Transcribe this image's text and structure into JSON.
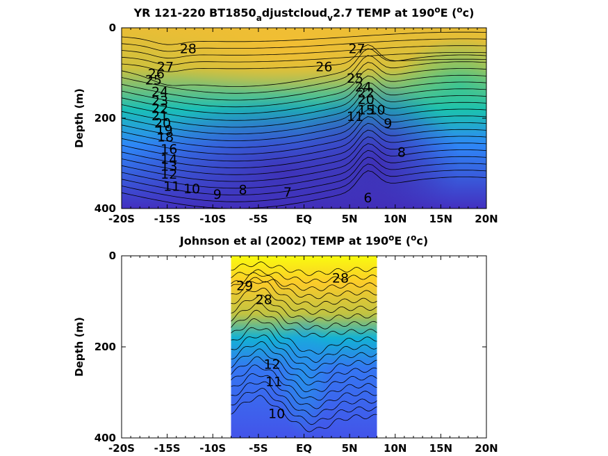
{
  "chart_data": [
    {
      "type": "heatmap",
      "subtype": "filled-contour",
      "title_parts": {
        "pre": "YR 121-220 BT1850",
        "sub1": "a",
        "mid": "djustcloud",
        "sub2": "v",
        "post": "2.7 TEMP at 190",
        "sup": "o",
        "post2": "E (",
        "sup2": "o",
        "post3": "c)"
      },
      "ylabel": "Depth (m)",
      "xlabel": "",
      "x_ticks": [
        "-20S",
        "-15S",
        "-10S",
        "-5S",
        "EQ",
        "5N",
        "10N",
        "15N",
        "20N"
      ],
      "x_tick_values": [
        -20,
        -15,
        -10,
        -5,
        0,
        5,
        10,
        15,
        20
      ],
      "y_ticks": [
        "0",
        "200",
        "400"
      ],
      "y_tick_values": [
        0,
        200,
        400
      ],
      "xlim": [
        -20,
        20
      ],
      "ylim": [
        400,
        0
      ],
      "data_extent": [
        -20,
        20
      ],
      "colormap": [
        "#3e26a8",
        "#4b40e3",
        "#2e87f7",
        "#12b1d6",
        "#1fc8a0",
        "#8bcc54",
        "#e4bd36",
        "#fbbf31",
        "#f9fb0e"
      ],
      "contour_labels": [
        {
          "text": "28",
          "x": -12.7,
          "y": 48
        },
        {
          "text": "27",
          "x": -15.2,
          "y": 88
        },
        {
          "text": "26",
          "x": -16.2,
          "y": 103
        },
        {
          "text": "25",
          "x": -16.5,
          "y": 117
        },
        {
          "text": "24",
          "x": -15.8,
          "y": 143
        },
        {
          "text": "23",
          "x": -15.8,
          "y": 163
        },
        {
          "text": "22",
          "x": -15.8,
          "y": 180
        },
        {
          "text": "21",
          "x": -15.8,
          "y": 196
        },
        {
          "text": "20",
          "x": -15.5,
          "y": 212
        },
        {
          "text": "19",
          "x": -15.3,
          "y": 228
        },
        {
          "text": "18",
          "x": -15.2,
          "y": 243
        },
        {
          "text": "16",
          "x": -14.8,
          "y": 270
        },
        {
          "text": "14",
          "x": -14.8,
          "y": 292
        },
        {
          "text": "13",
          "x": -14.8,
          "y": 308
        },
        {
          "text": "12",
          "x": -14.8,
          "y": 325
        },
        {
          "text": "11",
          "x": -14.5,
          "y": 352
        },
        {
          "text": "10",
          "x": -12.3,
          "y": 358
        },
        {
          "text": "9",
          "x": -9.5,
          "y": 370
        },
        {
          "text": "8",
          "x": -6.7,
          "y": 360
        },
        {
          "text": "7",
          "x": -1.8,
          "y": 365
        },
        {
          "text": "6",
          "x": 7.0,
          "y": 378
        },
        {
          "text": "27",
          "x": 5.8,
          "y": 48
        },
        {
          "text": "26",
          "x": 2.2,
          "y": 88
        },
        {
          "text": "25",
          "x": 5.6,
          "y": 113
        },
        {
          "text": "24",
          "x": 6.5,
          "y": 132
        },
        {
          "text": "22",
          "x": 6.8,
          "y": 145
        },
        {
          "text": "20",
          "x": 6.8,
          "y": 160
        },
        {
          "text": "15",
          "x": 6.8,
          "y": 183
        },
        {
          "text": "11",
          "x": 5.6,
          "y": 198
        },
        {
          "text": "10",
          "x": 8.0,
          "y": 183
        },
        {
          "text": "9",
          "x": 9.2,
          "y": 213
        },
        {
          "text": "8",
          "x": 10.7,
          "y": 277
        }
      ]
    },
    {
      "type": "heatmap",
      "subtype": "filled-contour",
      "title_parts": {
        "pre": "Johnson et al (2002) TEMP at 190",
        "sup": "o",
        "post": "E (",
        "sup2": "o",
        "post2": "c)"
      },
      "ylabel": "Depth (m)",
      "xlabel": "",
      "x_ticks": [
        "-20S",
        "-15S",
        "-10S",
        "-5S",
        "EQ",
        "5N",
        "10N",
        "15N",
        "20N"
      ],
      "x_tick_values": [
        -20,
        -15,
        -10,
        -5,
        0,
        5,
        10,
        15,
        20
      ],
      "y_ticks": [
        "0",
        "200",
        "400"
      ],
      "y_tick_values": [
        0,
        200,
        400
      ],
      "xlim": [
        -20,
        20
      ],
      "ylim": [
        400,
        0
      ],
      "data_extent": [
        -8,
        8
      ],
      "colormap": [
        "#3e26a8",
        "#4b40e3",
        "#2e87f7",
        "#12b1d6",
        "#1fc8a0",
        "#8bcc54",
        "#e4bd36",
        "#fbbf31",
        "#f9fb0e"
      ],
      "contour_labels": [
        {
          "text": "29",
          "x": -6.5,
          "y": 67
        },
        {
          "text": "28",
          "x": -4.4,
          "y": 98
        },
        {
          "text": "28",
          "x": 4.0,
          "y": 50
        },
        {
          "text": "12",
          "x": -3.5,
          "y": 240
        },
        {
          "text": "11",
          "x": -3.3,
          "y": 278
        },
        {
          "text": "10",
          "x": -3.0,
          "y": 348
        }
      ]
    }
  ]
}
